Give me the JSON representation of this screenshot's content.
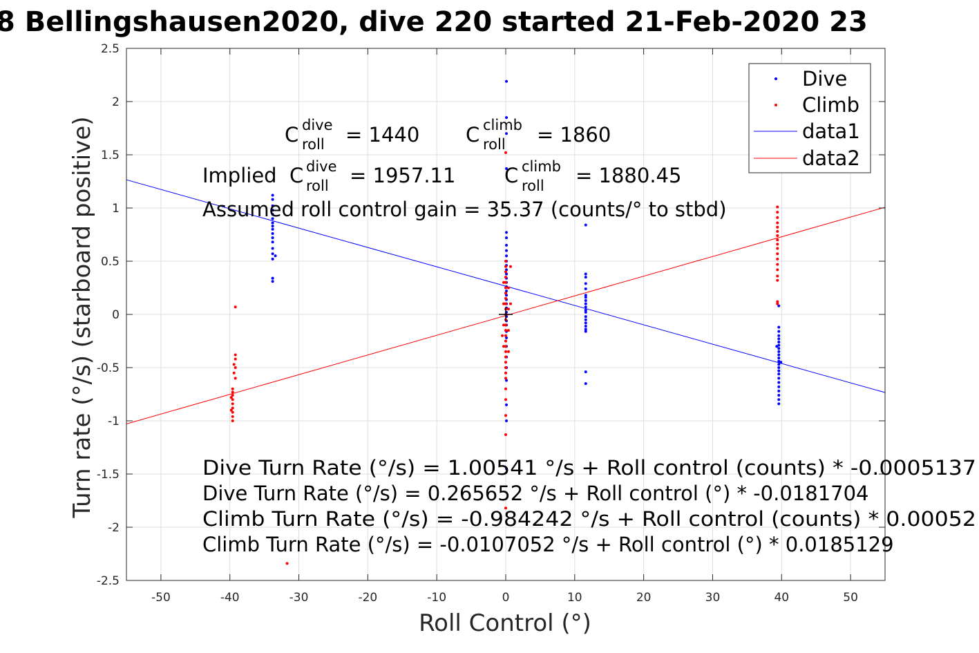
{
  "chart_data": {
    "type": "scatter",
    "title": "8 Bellingshausen2020, dive 220 started 21-Feb-2020 23",
    "xlabel": "Roll Control (°)",
    "ylabel": "Turn rate (°/s) (starboard positive)",
    "xlim": [
      -55,
      55
    ],
    "ylim": [
      -2.5,
      2.5
    ],
    "xticks": [
      -50,
      -40,
      -30,
      -20,
      -10,
      0,
      10,
      20,
      30,
      40,
      50
    ],
    "yticks": [
      -2.5,
      -2,
      -1.5,
      -1,
      -0.5,
      0,
      0.5,
      1,
      1.5,
      2,
      2.5
    ],
    "grid": true,
    "legend_position": "top-right",
    "series": [
      {
        "name": "Dive",
        "kind": "points",
        "color": "#0000ff",
        "points": [
          [
            -33.8,
            1.12
          ],
          [
            -33.8,
            1.08
          ],
          [
            -33.8,
            1.02
          ],
          [
            -33.8,
            0.98
          ],
          [
            -33.8,
            0.94
          ],
          [
            -33.8,
            0.9
          ],
          [
            -33.8,
            0.86
          ],
          [
            -33.8,
            0.83
          ],
          [
            -33.8,
            0.8
          ],
          [
            -33.8,
            0.76
          ],
          [
            -33.8,
            0.72
          ],
          [
            -33.8,
            0.68
          ],
          [
            -33.8,
            0.62
          ],
          [
            -33.8,
            0.57
          ],
          [
            -33.8,
            0.52
          ],
          [
            -33.4,
            0.55
          ],
          [
            -33.8,
            0.34
          ],
          [
            -33.8,
            0.31
          ],
          [
            0.1,
            2.19
          ],
          [
            0.1,
            1.85
          ],
          [
            0.1,
            1.7
          ],
          [
            0.1,
            1.37
          ],
          [
            0.1,
            0.77
          ],
          [
            0.1,
            0.72
          ],
          [
            0.1,
            0.65
          ],
          [
            0.1,
            0.6
          ],
          [
            0.1,
            0.55
          ],
          [
            0.1,
            0.5
          ],
          [
            0.1,
            0.46
          ],
          [
            0.1,
            0.42
          ],
          [
            0.1,
            0.38
          ],
          [
            0.1,
            0.34
          ],
          [
            0.1,
            0.3
          ],
          [
            0.1,
            0.26
          ],
          [
            0.1,
            0.22
          ],
          [
            0.1,
            0.18
          ],
          [
            0.1,
            0.14
          ],
          [
            0.1,
            0.1
          ],
          [
            0.1,
            0.06
          ],
          [
            0.1,
            0.02
          ],
          [
            0.1,
            -0.02
          ],
          [
            0.1,
            -0.06
          ],
          [
            0.1,
            -0.1
          ],
          [
            0.1,
            -0.16
          ],
          [
            0.1,
            -0.22
          ],
          [
            0.1,
            -0.3
          ],
          [
            0.1,
            -0.4
          ],
          [
            0.1,
            -0.5
          ],
          [
            0.1,
            -0.62
          ],
          [
            0.1,
            -0.85
          ],
          [
            0.1,
            -1.0
          ],
          [
            0.1,
            -1.45
          ],
          [
            11.6,
            0.84
          ],
          [
            11.6,
            0.38
          ],
          [
            11.6,
            0.35
          ],
          [
            11.6,
            0.29
          ],
          [
            11.6,
            0.24
          ],
          [
            11.6,
            0.18
          ],
          [
            11.6,
            0.16
          ],
          [
            11.6,
            0.13
          ],
          [
            11.6,
            0.1
          ],
          [
            11.6,
            0.07
          ],
          [
            11.6,
            0.04
          ],
          [
            11.6,
            0.02
          ],
          [
            11.6,
            -0.02
          ],
          [
            11.6,
            -0.05
          ],
          [
            11.6,
            -0.08
          ],
          [
            11.6,
            -0.11
          ],
          [
            11.6,
            -0.14
          ],
          [
            11.6,
            -0.16
          ],
          [
            11.6,
            -0.54
          ],
          [
            11.6,
            -0.65
          ],
          [
            39.6,
            0.08
          ],
          [
            39.6,
            -0.12
          ],
          [
            39.6,
            -0.16
          ],
          [
            39.6,
            -0.2
          ],
          [
            39.6,
            -0.23
          ],
          [
            39.6,
            -0.26
          ],
          [
            39.6,
            -0.29
          ],
          [
            39.6,
            -0.32
          ],
          [
            39.6,
            -0.35
          ],
          [
            39.6,
            -0.38
          ],
          [
            39.6,
            -0.41
          ],
          [
            39.6,
            -0.44
          ],
          [
            39.6,
            -0.47
          ],
          [
            39.6,
            -0.5
          ],
          [
            39.6,
            -0.53
          ],
          [
            39.6,
            -0.56
          ],
          [
            39.6,
            -0.6
          ],
          [
            39.6,
            -0.64
          ],
          [
            39.6,
            -0.68
          ],
          [
            39.6,
            -0.72
          ],
          [
            39.6,
            -0.76
          ],
          [
            39.6,
            -0.8
          ],
          [
            39.6,
            -0.84
          ],
          [
            39.3,
            -0.3
          ],
          [
            39.9,
            -0.45
          ]
        ]
      },
      {
        "name": "Climb",
        "kind": "points",
        "color": "#ff0000",
        "points": [
          [
            -39.2,
            0.07
          ],
          [
            -39.2,
            -0.38
          ],
          [
            -39.2,
            -0.42
          ],
          [
            -39.2,
            -0.5
          ],
          [
            -39.4,
            -0.55
          ],
          [
            -39.6,
            -0.7
          ],
          [
            -39.6,
            -0.73
          ],
          [
            -39.6,
            -0.76
          ],
          [
            -39.6,
            -0.8
          ],
          [
            -39.6,
            -0.84
          ],
          [
            -39.6,
            -0.88
          ],
          [
            -39.6,
            -0.92
          ],
          [
            -39.6,
            -0.96
          ],
          [
            -39.6,
            -1.0
          ],
          [
            -39.2,
            -0.6
          ],
          [
            -39.4,
            -0.47
          ],
          [
            -39.8,
            -0.78
          ],
          [
            -39.8,
            -0.9
          ],
          [
            -31.7,
            -2.34
          ],
          [
            0.0,
            1.52
          ],
          [
            0.0,
            0.5
          ],
          [
            0.0,
            0.45
          ],
          [
            0.0,
            0.4
          ],
          [
            0.0,
            0.35
          ],
          [
            0.0,
            0.3
          ],
          [
            0.0,
            0.25
          ],
          [
            0.0,
            0.2
          ],
          [
            0.0,
            0.15
          ],
          [
            0.0,
            0.1
          ],
          [
            0.0,
            0.05
          ],
          [
            0.0,
            0.0
          ],
          [
            0.0,
            -0.05
          ],
          [
            0.0,
            -0.1
          ],
          [
            0.0,
            -0.15
          ],
          [
            0.0,
            -0.2
          ],
          [
            0.0,
            -0.25
          ],
          [
            0.0,
            -0.3
          ],
          [
            0.0,
            -0.35
          ],
          [
            0.0,
            -0.4
          ],
          [
            0.0,
            -0.45
          ],
          [
            0.0,
            -0.5
          ],
          [
            0.0,
            -0.55
          ],
          [
            0.0,
            -0.6
          ],
          [
            0.0,
            -0.7
          ],
          [
            0.0,
            -0.8
          ],
          [
            0.0,
            -0.95
          ],
          [
            0.0,
            -1.13
          ],
          [
            -0.3,
            0.3
          ],
          [
            0.4,
            0.25
          ],
          [
            -0.3,
            0.1
          ],
          [
            0.4,
            0.05
          ],
          [
            -0.3,
            -0.1
          ],
          [
            0.4,
            -0.15
          ],
          [
            -0.3,
            -0.3
          ],
          [
            0.4,
            -0.35
          ],
          [
            0.7,
            0.45
          ],
          [
            0.7,
            0.1
          ],
          [
            -0.5,
            -0.2
          ],
          [
            0.0,
            -1.82
          ],
          [
            39.4,
            1.01
          ],
          [
            39.4,
            0.96
          ],
          [
            39.4,
            0.91
          ],
          [
            39.4,
            0.86
          ],
          [
            39.4,
            0.82
          ],
          [
            39.4,
            0.78
          ],
          [
            39.4,
            0.74
          ],
          [
            39.4,
            0.7
          ],
          [
            39.4,
            0.66
          ],
          [
            39.4,
            0.62
          ],
          [
            39.4,
            0.57
          ],
          [
            39.4,
            0.52
          ],
          [
            39.4,
            0.47
          ],
          [
            39.4,
            0.42
          ],
          [
            39.4,
            0.36
          ],
          [
            39.4,
            0.32
          ],
          [
            39.4,
            0.12
          ],
          [
            39.4,
            0.1
          ]
        ]
      },
      {
        "name": "data1",
        "kind": "line",
        "color": "#0000ff",
        "x": [
          -55,
          55
        ],
        "y": [
          1.265,
          -0.734
        ]
      },
      {
        "name": "data2",
        "kind": "line",
        "color": "#ff0000",
        "x": [
          -55,
          55
        ],
        "y": [
          -1.029,
          1.007
        ]
      }
    ],
    "marker": {
      "x": 0,
      "y": 0,
      "symbol": "plus",
      "color": "#000000"
    },
    "annotations": {
      "c_dive": {
        "sym": "C",
        "sup": "dive",
        "sub": "roll",
        "val": "= 1440"
      },
      "c_climb": {
        "sym": "C",
        "sup": "climb",
        "sub": "roll",
        "val": "= 1860"
      },
      "implied_prefix": "Implied",
      "implied_dive": {
        "sym": "C",
        "sup": "dive",
        "sub": "roll",
        "val": "= 1957.11"
      },
      "implied_climb": {
        "sym": "C",
        "sup": "climb",
        "sub": "roll",
        "val": "= 1880.45"
      },
      "gain": "Assumed roll control gain = 35.37 (counts/° to stbd)",
      "fits": [
        "Dive Turn Rate (°/s) = 1.00541 °/s + Roll control (counts) * -0.0005137",
        "Dive Turn Rate (°/s) = 0.265652 °/s + Roll control (°) * -0.0181704",
        "Climb Turn Rate (°/s) = -0.984242 °/s + Roll control (counts) * 0.00052",
        "Climb Turn Rate (°/s) = -0.0107052 °/s + Roll control (°) * 0.0185129"
      ]
    }
  }
}
